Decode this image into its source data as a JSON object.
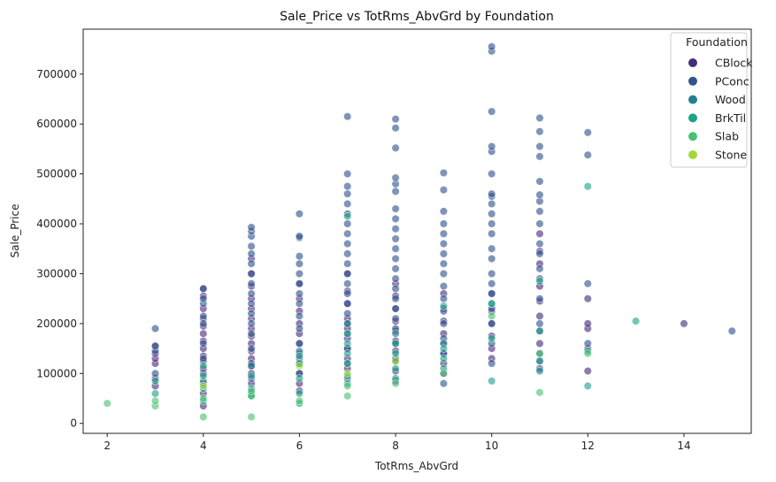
{
  "chart_data": {
    "type": "scatter",
    "title": "Sale_Price vs TotRms_AbvGrd by Foundation",
    "xlabel": "TotRms_AbvGrd",
    "ylabel": "Sale_Price",
    "xlim": [
      1.5,
      15.4
    ],
    "ylim": [
      -20000,
      790000
    ],
    "xticks": [
      2,
      4,
      6,
      8,
      10,
      12,
      14
    ],
    "yticks": [
      0,
      100000,
      200000,
      300000,
      400000,
      500000,
      600000,
      700000
    ],
    "grid": false,
    "legend": {
      "title": "Foundation",
      "placement": "top-right",
      "entries": [
        {
          "name": "CBlock",
          "color": "#472c7a"
        },
        {
          "name": "PConc",
          "color": "#31548c"
        },
        {
          "name": "Wood",
          "color": "#25808e"
        },
        {
          "name": "BrkTil",
          "color": "#1fa187"
        },
        {
          "name": "Slab",
          "color": "#4ac16d"
        },
        {
          "name": "Stone",
          "color": "#a0da39"
        }
      ]
    },
    "series": [
      {
        "name": "CBlock",
        "color": "#472c7a",
        "points": [
          [
            3,
            75000
          ],
          [
            3,
            90000
          ],
          [
            3,
            120000
          ],
          [
            3,
            130000
          ],
          [
            3,
            140000
          ],
          [
            3,
            155000
          ],
          [
            4,
            35000
          ],
          [
            4,
            60000
          ],
          [
            4,
            80000
          ],
          [
            4,
            100000
          ],
          [
            4,
            110000
          ],
          [
            4,
            125000
          ],
          [
            4,
            135000
          ],
          [
            4,
            150000
          ],
          [
            4,
            165000
          ],
          [
            4,
            180000
          ],
          [
            4,
            195000
          ],
          [
            4,
            210000
          ],
          [
            4,
            230000
          ],
          [
            4,
            255000
          ],
          [
            4,
            270000
          ],
          [
            5,
            60000
          ],
          [
            5,
            80000
          ],
          [
            5,
            100000
          ],
          [
            5,
            115000
          ],
          [
            5,
            130000
          ],
          [
            5,
            145000
          ],
          [
            5,
            160000
          ],
          [
            5,
            175000
          ],
          [
            5,
            190000
          ],
          [
            5,
            210000
          ],
          [
            5,
            230000
          ],
          [
            5,
            250000
          ],
          [
            5,
            275000
          ],
          [
            5,
            300000
          ],
          [
            5,
            330000
          ],
          [
            6,
            65000
          ],
          [
            6,
            80000
          ],
          [
            6,
            100000
          ],
          [
            6,
            120000
          ],
          [
            6,
            140000
          ],
          [
            6,
            160000
          ],
          [
            6,
            180000
          ],
          [
            6,
            200000
          ],
          [
            6,
            225000
          ],
          [
            6,
            250000
          ],
          [
            6,
            280000
          ],
          [
            7,
            90000
          ],
          [
            7,
            110000
          ],
          [
            7,
            130000
          ],
          [
            7,
            150000
          ],
          [
            7,
            170000
          ],
          [
            7,
            190000
          ],
          [
            7,
            210000
          ],
          [
            7,
            240000
          ],
          [
            7,
            265000
          ],
          [
            7,
            300000
          ],
          [
            8,
            85000
          ],
          [
            8,
            105000
          ],
          [
            8,
            125000
          ],
          [
            8,
            145000
          ],
          [
            8,
            165000
          ],
          [
            8,
            185000
          ],
          [
            8,
            205000
          ],
          [
            8,
            230000
          ],
          [
            8,
            255000
          ],
          [
            8,
            280000
          ],
          [
            9,
            100000
          ],
          [
            9,
            120000
          ],
          [
            9,
            140000
          ],
          [
            9,
            160000
          ],
          [
            9,
            180000
          ],
          [
            9,
            205000
          ],
          [
            9,
            230000
          ],
          [
            9,
            260000
          ],
          [
            10,
            130000
          ],
          [
            10,
            150000
          ],
          [
            10,
            175000
          ],
          [
            10,
            200000
          ],
          [
            10,
            225000
          ],
          [
            10,
            260000
          ],
          [
            11,
            125000
          ],
          [
            11,
            160000
          ],
          [
            11,
            185000
          ],
          [
            11,
            215000
          ],
          [
            11,
            245000
          ],
          [
            11,
            275000
          ],
          [
            11,
            320000
          ],
          [
            11,
            345000
          ],
          [
            11,
            380000
          ],
          [
            12,
            105000
          ],
          [
            12,
            150000
          ],
          [
            12,
            190000
          ],
          [
            12,
            200000
          ],
          [
            12,
            250000
          ],
          [
            14,
            200000
          ]
        ]
      },
      {
        "name": "PConc",
        "color": "#31548c",
        "points": [
          [
            3,
            100000
          ],
          [
            3,
            145000
          ],
          [
            3,
            155000
          ],
          [
            3,
            190000
          ],
          [
            4,
            130000
          ],
          [
            4,
            160000
          ],
          [
            4,
            200000
          ],
          [
            4,
            215000
          ],
          [
            4,
            240000
          ],
          [
            4,
            250000
          ],
          [
            4,
            270000
          ],
          [
            5,
            90000
          ],
          [
            5,
            120000
          ],
          [
            5,
            150000
          ],
          [
            5,
            180000
          ],
          [
            5,
            200000
          ],
          [
            5,
            220000
          ],
          [
            5,
            240000
          ],
          [
            5,
            260000
          ],
          [
            5,
            280000
          ],
          [
            5,
            300000
          ],
          [
            5,
            320000
          ],
          [
            5,
            340000
          ],
          [
            5,
            355000
          ],
          [
            5,
            375000
          ],
          [
            5,
            385000
          ],
          [
            5,
            393000
          ],
          [
            6,
            100000
          ],
          [
            6,
            130000
          ],
          [
            6,
            160000
          ],
          [
            6,
            190000
          ],
          [
            6,
            215000
          ],
          [
            6,
            240000
          ],
          [
            6,
            260000
          ],
          [
            6,
            280000
          ],
          [
            6,
            300000
          ],
          [
            6,
            320000
          ],
          [
            6,
            335000
          ],
          [
            6,
            372000
          ],
          [
            6,
            375000
          ],
          [
            6,
            420000
          ],
          [
            7,
            120000
          ],
          [
            7,
            150000
          ],
          [
            7,
            180000
          ],
          [
            7,
            200000
          ],
          [
            7,
            220000
          ],
          [
            7,
            240000
          ],
          [
            7,
            260000
          ],
          [
            7,
            280000
          ],
          [
            7,
            300000
          ],
          [
            7,
            320000
          ],
          [
            7,
            340000
          ],
          [
            7,
            360000
          ],
          [
            7,
            380000
          ],
          [
            7,
            400000
          ],
          [
            7,
            420000
          ],
          [
            7,
            440000
          ],
          [
            7,
            460000
          ],
          [
            7,
            475000
          ],
          [
            7,
            500000
          ],
          [
            7,
            615000
          ],
          [
            8,
            130000
          ],
          [
            8,
            160000
          ],
          [
            8,
            190000
          ],
          [
            8,
            210000
          ],
          [
            8,
            230000
          ],
          [
            8,
            250000
          ],
          [
            8,
            270000
          ],
          [
            8,
            290000
          ],
          [
            8,
            310000
          ],
          [
            8,
            330000
          ],
          [
            8,
            350000
          ],
          [
            8,
            370000
          ],
          [
            8,
            390000
          ],
          [
            8,
            410000
          ],
          [
            8,
            430000
          ],
          [
            8,
            465000
          ],
          [
            8,
            480000
          ],
          [
            8,
            492000
          ],
          [
            8,
            552000
          ],
          [
            8,
            592000
          ],
          [
            8,
            610000
          ],
          [
            9,
            80000
          ],
          [
            9,
            140000
          ],
          [
            9,
            170000
          ],
          [
            9,
            200000
          ],
          [
            9,
            225000
          ],
          [
            9,
            250000
          ],
          [
            9,
            275000
          ],
          [
            9,
            300000
          ],
          [
            9,
            320000
          ],
          [
            9,
            340000
          ],
          [
            9,
            360000
          ],
          [
            9,
            380000
          ],
          [
            9,
            400000
          ],
          [
            9,
            425000
          ],
          [
            9,
            468000
          ],
          [
            9,
            502000
          ],
          [
            10,
            120000
          ],
          [
            10,
            160000
          ],
          [
            10,
            200000
          ],
          [
            10,
            230000
          ],
          [
            10,
            260000
          ],
          [
            10,
            280000
          ],
          [
            10,
            300000
          ],
          [
            10,
            330000
          ],
          [
            10,
            350000
          ],
          [
            10,
            380000
          ],
          [
            10,
            400000
          ],
          [
            10,
            420000
          ],
          [
            10,
            440000
          ],
          [
            10,
            455000
          ],
          [
            10,
            460000
          ],
          [
            10,
            500000
          ],
          [
            10,
            545000
          ],
          [
            10,
            555000
          ],
          [
            10,
            625000
          ],
          [
            10,
            746000
          ],
          [
            10,
            755000
          ],
          [
            11,
            110000
          ],
          [
            11,
            140000
          ],
          [
            11,
            200000
          ],
          [
            11,
            250000
          ],
          [
            11,
            290000
          ],
          [
            11,
            310000
          ],
          [
            11,
            340000
          ],
          [
            11,
            360000
          ],
          [
            11,
            400000
          ],
          [
            11,
            425000
          ],
          [
            11,
            445000
          ],
          [
            11,
            458000
          ],
          [
            11,
            485000
          ],
          [
            11,
            535000
          ],
          [
            11,
            555000
          ],
          [
            11,
            585000
          ],
          [
            11,
            612000
          ],
          [
            12,
            160000
          ],
          [
            12,
            280000
          ],
          [
            12,
            538000
          ],
          [
            12,
            583000
          ],
          [
            15,
            185000
          ]
        ]
      },
      {
        "name": "Wood",
        "color": "#25808e",
        "points": [
          [
            4,
            85000
          ],
          [
            5,
            115000
          ],
          [
            6,
            145000
          ],
          [
            7,
            200000
          ],
          [
            8,
            180000
          ],
          [
            9,
            160000
          ],
          [
            10,
            240000
          ],
          [
            11,
            105000
          ]
        ]
      },
      {
        "name": "BrkTil",
        "color": "#1fa187",
        "points": [
          [
            3,
            60000
          ],
          [
            3,
            85000
          ],
          [
            4,
            45000
          ],
          [
            4,
            70000
          ],
          [
            4,
            95000
          ],
          [
            4,
            115000
          ],
          [
            5,
            55000
          ],
          [
            5,
            70000
          ],
          [
            5,
            95000
          ],
          [
            6,
            40000
          ],
          [
            6,
            60000
          ],
          [
            6,
            90000
          ],
          [
            6,
            120000
          ],
          [
            6,
            135000
          ],
          [
            7,
            80000
          ],
          [
            7,
            95000
          ],
          [
            7,
            120000
          ],
          [
            7,
            140000
          ],
          [
            7,
            160000
          ],
          [
            7,
            180000
          ],
          [
            7,
            415000
          ],
          [
            8,
            90000
          ],
          [
            8,
            110000
          ],
          [
            8,
            140000
          ],
          [
            8,
            160000
          ],
          [
            9,
            110000
          ],
          [
            9,
            130000
          ],
          [
            9,
            150000
          ],
          [
            9,
            235000
          ],
          [
            10,
            85000
          ],
          [
            10,
            170000
          ],
          [
            10,
            240000
          ],
          [
            11,
            125000
          ],
          [
            11,
            185000
          ],
          [
            11,
            285000
          ],
          [
            12,
            75000
          ],
          [
            12,
            145000
          ],
          [
            12,
            475000
          ],
          [
            13,
            205000
          ]
        ]
      },
      {
        "name": "Slab",
        "color": "#4ac16d",
        "points": [
          [
            2,
            40000
          ],
          [
            3,
            35000
          ],
          [
            3,
            45000
          ],
          [
            4,
            13000
          ],
          [
            4,
            50000
          ],
          [
            5,
            13000
          ],
          [
            5,
            55000
          ],
          [
            5,
            65000
          ],
          [
            6,
            45000
          ],
          [
            7,
            55000
          ],
          [
            7,
            75000
          ],
          [
            8,
            80000
          ],
          [
            9,
            100000
          ],
          [
            10,
            215000
          ],
          [
            11,
            62000
          ],
          [
            11,
            140000
          ],
          [
            12,
            140000
          ]
        ]
      },
      {
        "name": "Stone",
        "color": "#a0da39",
        "points": [
          [
            4,
            75000
          ],
          [
            6,
            115000
          ],
          [
            7,
            100000
          ],
          [
            8,
            125000
          ]
        ]
      }
    ]
  }
}
